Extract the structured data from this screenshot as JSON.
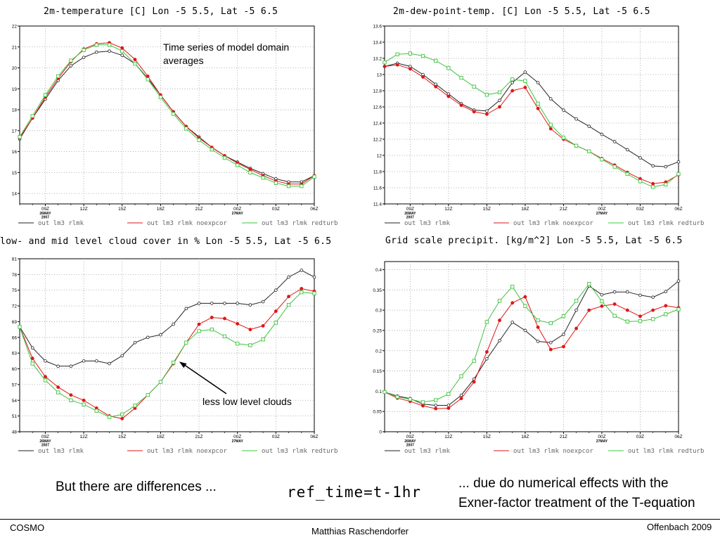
{
  "slide": {
    "left_note": "But there are differences ...",
    "center_note": "ref_time=t-1hr",
    "right_note_line1": "... due do numerical effects with the",
    "right_note_line2": "Exner-factor treatment of the T-equation",
    "footer_left": "COSMO",
    "footer_center": "Matthias Raschendorfer",
    "footer_right": "Offenbach 2009"
  },
  "legend": [
    "out lm3 rlmk",
    "out lm3 rlmk noexpcor",
    "out lm3 rlmk redturb"
  ],
  "colors": {
    "black": "#222222",
    "red": "#e01515",
    "green": "#3ec43e",
    "grid": "#9a9a9a"
  },
  "x_ticks": [
    {
      "x": 9,
      "label": "09Z",
      "sub": [
        "26MAY",
        "2007"
      ]
    },
    {
      "x": 12,
      "label": "12Z",
      "sub": []
    },
    {
      "x": 15,
      "label": "15Z",
      "sub": []
    },
    {
      "x": 18,
      "label": "18Z",
      "sub": []
    },
    {
      "x": 21,
      "label": "21Z",
      "sub": []
    },
    {
      "x": 24,
      "label": "00Z",
      "sub": [
        "27MAY"
      ]
    },
    {
      "x": 27,
      "label": "03Z",
      "sub": []
    },
    {
      "x": 30,
      "label": "06Z",
      "sub": []
    }
  ],
  "chart_data": [
    {
      "type": "line",
      "title": "2m-temperature [C] Lon -5 5.5, Lat -5 6.5",
      "annotation_line1": "Time series of model  domain",
      "annotation_line2": "averages",
      "ylim": [
        13.5,
        22
      ],
      "yticks": [
        14,
        15,
        16,
        17,
        18,
        19,
        20,
        21,
        22
      ],
      "ytick_labels": [
        "14",
        "15",
        "16",
        "17",
        "18",
        "19",
        "20",
        "21",
        "22"
      ],
      "x": [
        7,
        8,
        9,
        10,
        11,
        12,
        13,
        14,
        15,
        16,
        17,
        18,
        19,
        20,
        21,
        22,
        23,
        24,
        25,
        26,
        27,
        28,
        29,
        30
      ],
      "series": [
        {
          "name": "out lm3 rlmk",
          "values": [
            16.6,
            17.6,
            18.5,
            19.4,
            20.1,
            20.5,
            20.75,
            20.8,
            20.6,
            20.2,
            19.5,
            18.7,
            17.9,
            17.2,
            16.7,
            16.2,
            15.8,
            15.5,
            15.2,
            14.95,
            14.7,
            14.55,
            14.55,
            14.85
          ]
        },
        {
          "name": "out lm3 rlmk noexpcor",
          "values": [
            16.65,
            17.6,
            18.6,
            19.5,
            20.3,
            20.9,
            21.15,
            21.2,
            20.95,
            20.4,
            19.6,
            18.7,
            17.9,
            17.2,
            16.65,
            16.2,
            15.8,
            15.45,
            15.15,
            14.85,
            14.6,
            14.45,
            14.45,
            14.85
          ]
        },
        {
          "name": "out lm3 rlmk redturb",
          "values": [
            16.7,
            17.7,
            18.7,
            19.6,
            20.35,
            20.85,
            21.1,
            21.1,
            20.8,
            20.2,
            19.45,
            18.6,
            17.8,
            17.1,
            16.55,
            16.1,
            15.7,
            15.35,
            15.0,
            14.75,
            14.5,
            14.35,
            14.35,
            14.8
          ]
        }
      ]
    },
    {
      "type": "line",
      "title": "2m-dew-point-temp. [C] Lon -5 5.5, Lat -5 6.5",
      "ylim": [
        11.4,
        13.6
      ],
      "yticks": [
        11.4,
        11.6,
        11.8,
        12,
        12.2,
        12.4,
        12.6,
        12.8,
        13,
        13.2,
        13.4,
        13.6
      ],
      "ytick_labels": [
        "11.4",
        "11.6",
        "11.8",
        "12",
        "12.2",
        "12.4",
        "12.6",
        "12.8",
        "13",
        "13.2",
        "13.4",
        "13.6"
      ],
      "x": [
        7,
        8,
        9,
        10,
        11,
        12,
        13,
        14,
        15,
        16,
        17,
        18,
        19,
        20,
        21,
        22,
        23,
        24,
        25,
        26,
        27,
        28,
        29,
        30
      ],
      "series": [
        {
          "name": "out lm3 rlmk",
          "values": [
            13.1,
            13.14,
            13.1,
            13.0,
            12.88,
            12.76,
            12.64,
            12.56,
            12.55,
            12.68,
            12.9,
            13.03,
            12.9,
            12.7,
            12.56,
            12.45,
            12.36,
            12.26,
            12.17,
            12.07,
            11.97,
            11.87,
            11.86,
            11.92
          ]
        },
        {
          "name": "out lm3 rlmk noexpcor",
          "values": [
            13.1,
            13.12,
            13.07,
            12.97,
            12.85,
            12.73,
            12.62,
            12.54,
            12.51,
            12.6,
            12.8,
            12.84,
            12.58,
            12.33,
            12.2,
            12.12,
            12.05,
            11.96,
            11.88,
            11.79,
            11.71,
            11.65,
            11.67,
            11.76
          ]
        },
        {
          "name": "out lm3 rlmk redturb",
          "values": [
            13.15,
            13.25,
            13.26,
            13.23,
            13.17,
            13.08,
            12.96,
            12.85,
            12.75,
            12.78,
            12.94,
            12.92,
            12.64,
            12.38,
            12.22,
            12.12,
            12.05,
            11.95,
            11.86,
            11.77,
            11.68,
            11.61,
            11.64,
            11.77
          ]
        }
      ]
    },
    {
      "type": "line",
      "title": "low- and mid level cloud cover in % Lon -5 5.5, Lat -5 6.5",
      "annotation": "less low level clouds",
      "ylim": [
        48,
        81
      ],
      "yticks": [
        48,
        51,
        54,
        57,
        60,
        63,
        66,
        69,
        72,
        75,
        78,
        81
      ],
      "ytick_labels": [
        "48",
        "51",
        "54",
        "57",
        "60",
        "63",
        "66",
        "69",
        "72",
        "75",
        "78",
        "81"
      ],
      "x": [
        7,
        8,
        9,
        10,
        11,
        12,
        13,
        14,
        15,
        16,
        17,
        18,
        19,
        20,
        21,
        22,
        23,
        24,
        25,
        26,
        27,
        28,
        29,
        30
      ],
      "series": [
        {
          "name": "out lm3 rlmk",
          "values": [
            68,
            64,
            61.5,
            60.5,
            60.5,
            61.5,
            61.5,
            61,
            62.5,
            65,
            66,
            66.5,
            68.5,
            71.5,
            72.5,
            72.5,
            72.5,
            72.5,
            72.2,
            72.8,
            75,
            77.5,
            78.8,
            77.5
          ]
        },
        {
          "name": "out lm3 rlmk noexpcor",
          "values": [
            68,
            62,
            58.5,
            56.5,
            55,
            54,
            52.5,
            51,
            50.5,
            52.5,
            55,
            57.5,
            61,
            65,
            68.5,
            69.8,
            69.6,
            68.6,
            67.5,
            68.2,
            71,
            73.8,
            75.3,
            74.8
          ]
        },
        {
          "name": "out lm3 rlmk redturb",
          "values": [
            68,
            61,
            57.8,
            55.5,
            54,
            53.2,
            52,
            50.8,
            51.3,
            53,
            55,
            57.5,
            61.2,
            65,
            67.2,
            67.5,
            66.2,
            64.8,
            64.5,
            65.6,
            68.8,
            72.2,
            74.6,
            74.4
          ]
        }
      ]
    },
    {
      "type": "line",
      "title": "Grid scale precipit. [kg/m^2] Lon -5 5.5, Lat -5 6.5",
      "ylim": [
        0,
        0.42
      ],
      "yticks": [
        0,
        0.05,
        0.1,
        0.15,
        0.2,
        0.25,
        0.3,
        0.35,
        0.4
      ],
      "ytick_labels": [
        "0",
        "0.05",
        "0.1",
        "0.15",
        "0.2",
        "0.25",
        "0.3",
        "0.35",
        "0.4"
      ],
      "x": [
        7,
        8,
        9,
        10,
        11,
        12,
        13,
        14,
        15,
        16,
        17,
        18,
        19,
        20,
        21,
        22,
        23,
        24,
        25,
        26,
        27,
        28,
        29,
        30
      ],
      "series": [
        {
          "name": "out lm3 rlmk",
          "values": [
            0.098,
            0.088,
            0.082,
            0.068,
            0.065,
            0.065,
            0.09,
            0.13,
            0.18,
            0.225,
            0.27,
            0.25,
            0.223,
            0.22,
            0.24,
            0.3,
            0.36,
            0.338,
            0.345,
            0.345,
            0.337,
            0.332,
            0.346,
            0.372
          ]
        },
        {
          "name": "out lm3 rlmk noexpcor",
          "values": [
            0.098,
            0.083,
            0.075,
            0.064,
            0.057,
            0.058,
            0.082,
            0.123,
            0.197,
            0.275,
            0.318,
            0.333,
            0.258,
            0.203,
            0.21,
            0.255,
            0.3,
            0.31,
            0.315,
            0.3,
            0.285,
            0.3,
            0.311,
            0.306
          ]
        },
        {
          "name": "out lm3 rlmk redturb",
          "values": [
            0.098,
            0.086,
            0.08,
            0.073,
            0.078,
            0.093,
            0.137,
            0.175,
            0.271,
            0.323,
            0.358,
            0.31,
            0.275,
            0.268,
            0.285,
            0.323,
            0.365,
            0.322,
            0.286,
            0.272,
            0.273,
            0.278,
            0.29,
            0.302
          ]
        }
      ]
    }
  ]
}
